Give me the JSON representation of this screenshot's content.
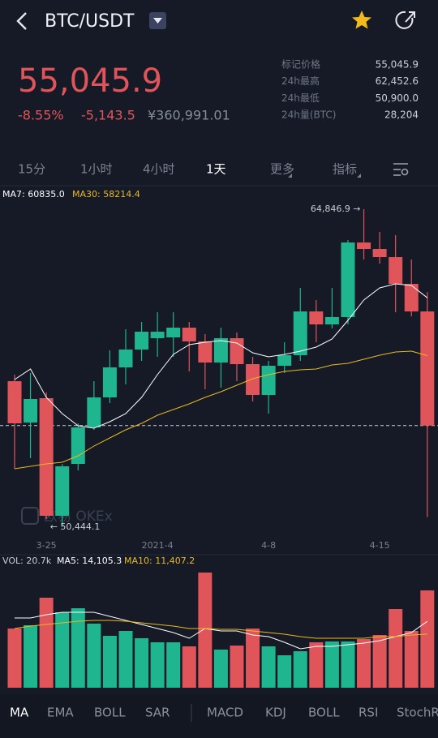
{
  "header": {
    "pair": "BTC/USDT"
  },
  "price": {
    "last": "55,045.9",
    "change_pct": "-8.55%",
    "change": "-5,143.5",
    "cny": "¥360,991.01"
  },
  "stats": {
    "rows": [
      [
        "标记价格",
        "55,045.9"
      ],
      [
        "24h最高",
        "62,452.6"
      ],
      [
        "24h最低",
        "50,900.0"
      ],
      [
        "24h量(BTC)",
        "28,204"
      ]
    ]
  },
  "tabs": {
    "items": [
      "15分",
      "1小时",
      "4小时",
      "1天",
      "更多",
      "指标"
    ],
    "active": 3
  },
  "watermark": "欧易 OKEx",
  "chart_data": [
    {
      "type": "candlestick",
      "categories": [
        null,
        null,
        "3-25",
        null,
        null,
        null,
        null,
        null,
        null,
        "2021-4",
        null,
        null,
        null,
        null,
        null,
        null,
        "4-8",
        null,
        null,
        null,
        null,
        null,
        null,
        "4-15",
        null,
        null,
        null
      ],
      "open": [
        57057,
        55183,
        56286,
        50958,
        53310,
        54963,
        56322,
        57682,
        58490,
        59004,
        59041,
        59482,
        58857,
        57902,
        59004,
        57829,
        56432,
        57755,
        58233,
        60217,
        59629,
        59960,
        63340,
        63046,
        62678,
        61466,
        60217
      ],
      "high": [
        57351,
        57425,
        56543,
        53300,
        55147,
        57057,
        58453,
        59409,
        59739,
        60180,
        60180,
        59739,
        59188,
        59482,
        59262,
        58159,
        57976,
        58821,
        61282,
        60731,
        61282,
        63450,
        64846.9,
        63818,
        63671,
        62568,
        61098
      ],
      "low": [
        53089,
        53567,
        50812,
        50444.1,
        53016,
        54853,
        56065,
        56910,
        57976,
        58159,
        58159,
        57498,
        56690,
        56763,
        57057,
        56139,
        55588,
        57425,
        57976,
        58821,
        59445,
        59629,
        62568,
        62384,
        60180,
        59996,
        50900
      ],
      "close": [
        55147,
        56249,
        50958,
        53200,
        54963,
        56322,
        57682,
        58490,
        59298,
        59298,
        59482,
        58857,
        57902,
        59004,
        57829,
        56432,
        57755,
        58233,
        60217,
        59629,
        59960,
        63340,
        63046,
        62678,
        61466,
        60217,
        55045.9
      ],
      "up_color": "#1fb58f",
      "down_color": "#e0555a",
      "series": [
        {
          "label": "MA7: 60835.0",
          "color": "#ffffff",
          "values": [
            57131,
            57608,
            56322,
            55588,
            55036,
            54926,
            55220,
            55588,
            56322,
            57351,
            58270,
            58710,
            58821,
            58894,
            58784,
            58343,
            58159,
            58270,
            58417,
            58600,
            58968,
            59813,
            60731,
            61282,
            61466,
            61393,
            60835.0
          ]
        },
        {
          "label": "MA30: 58214.4",
          "color": "#e8b923",
          "values": [
            53089,
            53200,
            53310,
            53383,
            53677,
            54118,
            54485,
            54853,
            55147,
            55514,
            55771,
            56028,
            56322,
            56580,
            56874,
            57167,
            57351,
            57498,
            57572,
            57608,
            57792,
            57865,
            58049,
            58233,
            58380,
            58417,
            58214.4
          ]
        }
      ],
      "high_label": "64,846.9 →",
      "low_label": "← 50,444.1"
    },
    {
      "type": "bar",
      "label": "VOL: 20.7k",
      "values": [
        12593,
        13283,
        19148,
        16043,
        16905,
        13628,
        11040,
        12075,
        10523,
        9660,
        9660,
        8798,
        24495,
        8108,
        8970,
        12593,
        8798,
        6900,
        7763,
        9660,
        9833,
        9833,
        10350,
        11213,
        16733,
        12075,
        20700
      ],
      "series": [
        {
          "label": "MA5: 14,105.3",
          "color": "#ffffff",
          "values": [
            14835,
            14835,
            15525,
            16043,
            16043,
            16043,
            15180,
            14318,
            13455,
            12593,
            11730,
            10523,
            12593,
            12075,
            12075,
            11213,
            10868,
            9660,
            8280,
            8798,
            8798,
            9143,
            9488,
            10005,
            10868,
            11730,
            14105.3
          ]
        },
        {
          "label": "MA10: 11,407.2",
          "color": "#e8b923",
          "values": [
            12593,
            13110,
            13455,
            13800,
            14145,
            14318,
            14318,
            14145,
            13800,
            13455,
            13110,
            12593,
            12593,
            12420,
            12420,
            12075,
            11730,
            11385,
            10868,
            10523,
            10523,
            10523,
            10523,
            10868,
            10868,
            11213,
            11407.2
          ]
        }
      ]
    }
  ],
  "indicator_tabs": [
    "MA",
    "EMA",
    "BOLL",
    "SAR",
    "MACD",
    "KDJ",
    "BOLL",
    "RSI",
    "StochRSI"
  ]
}
